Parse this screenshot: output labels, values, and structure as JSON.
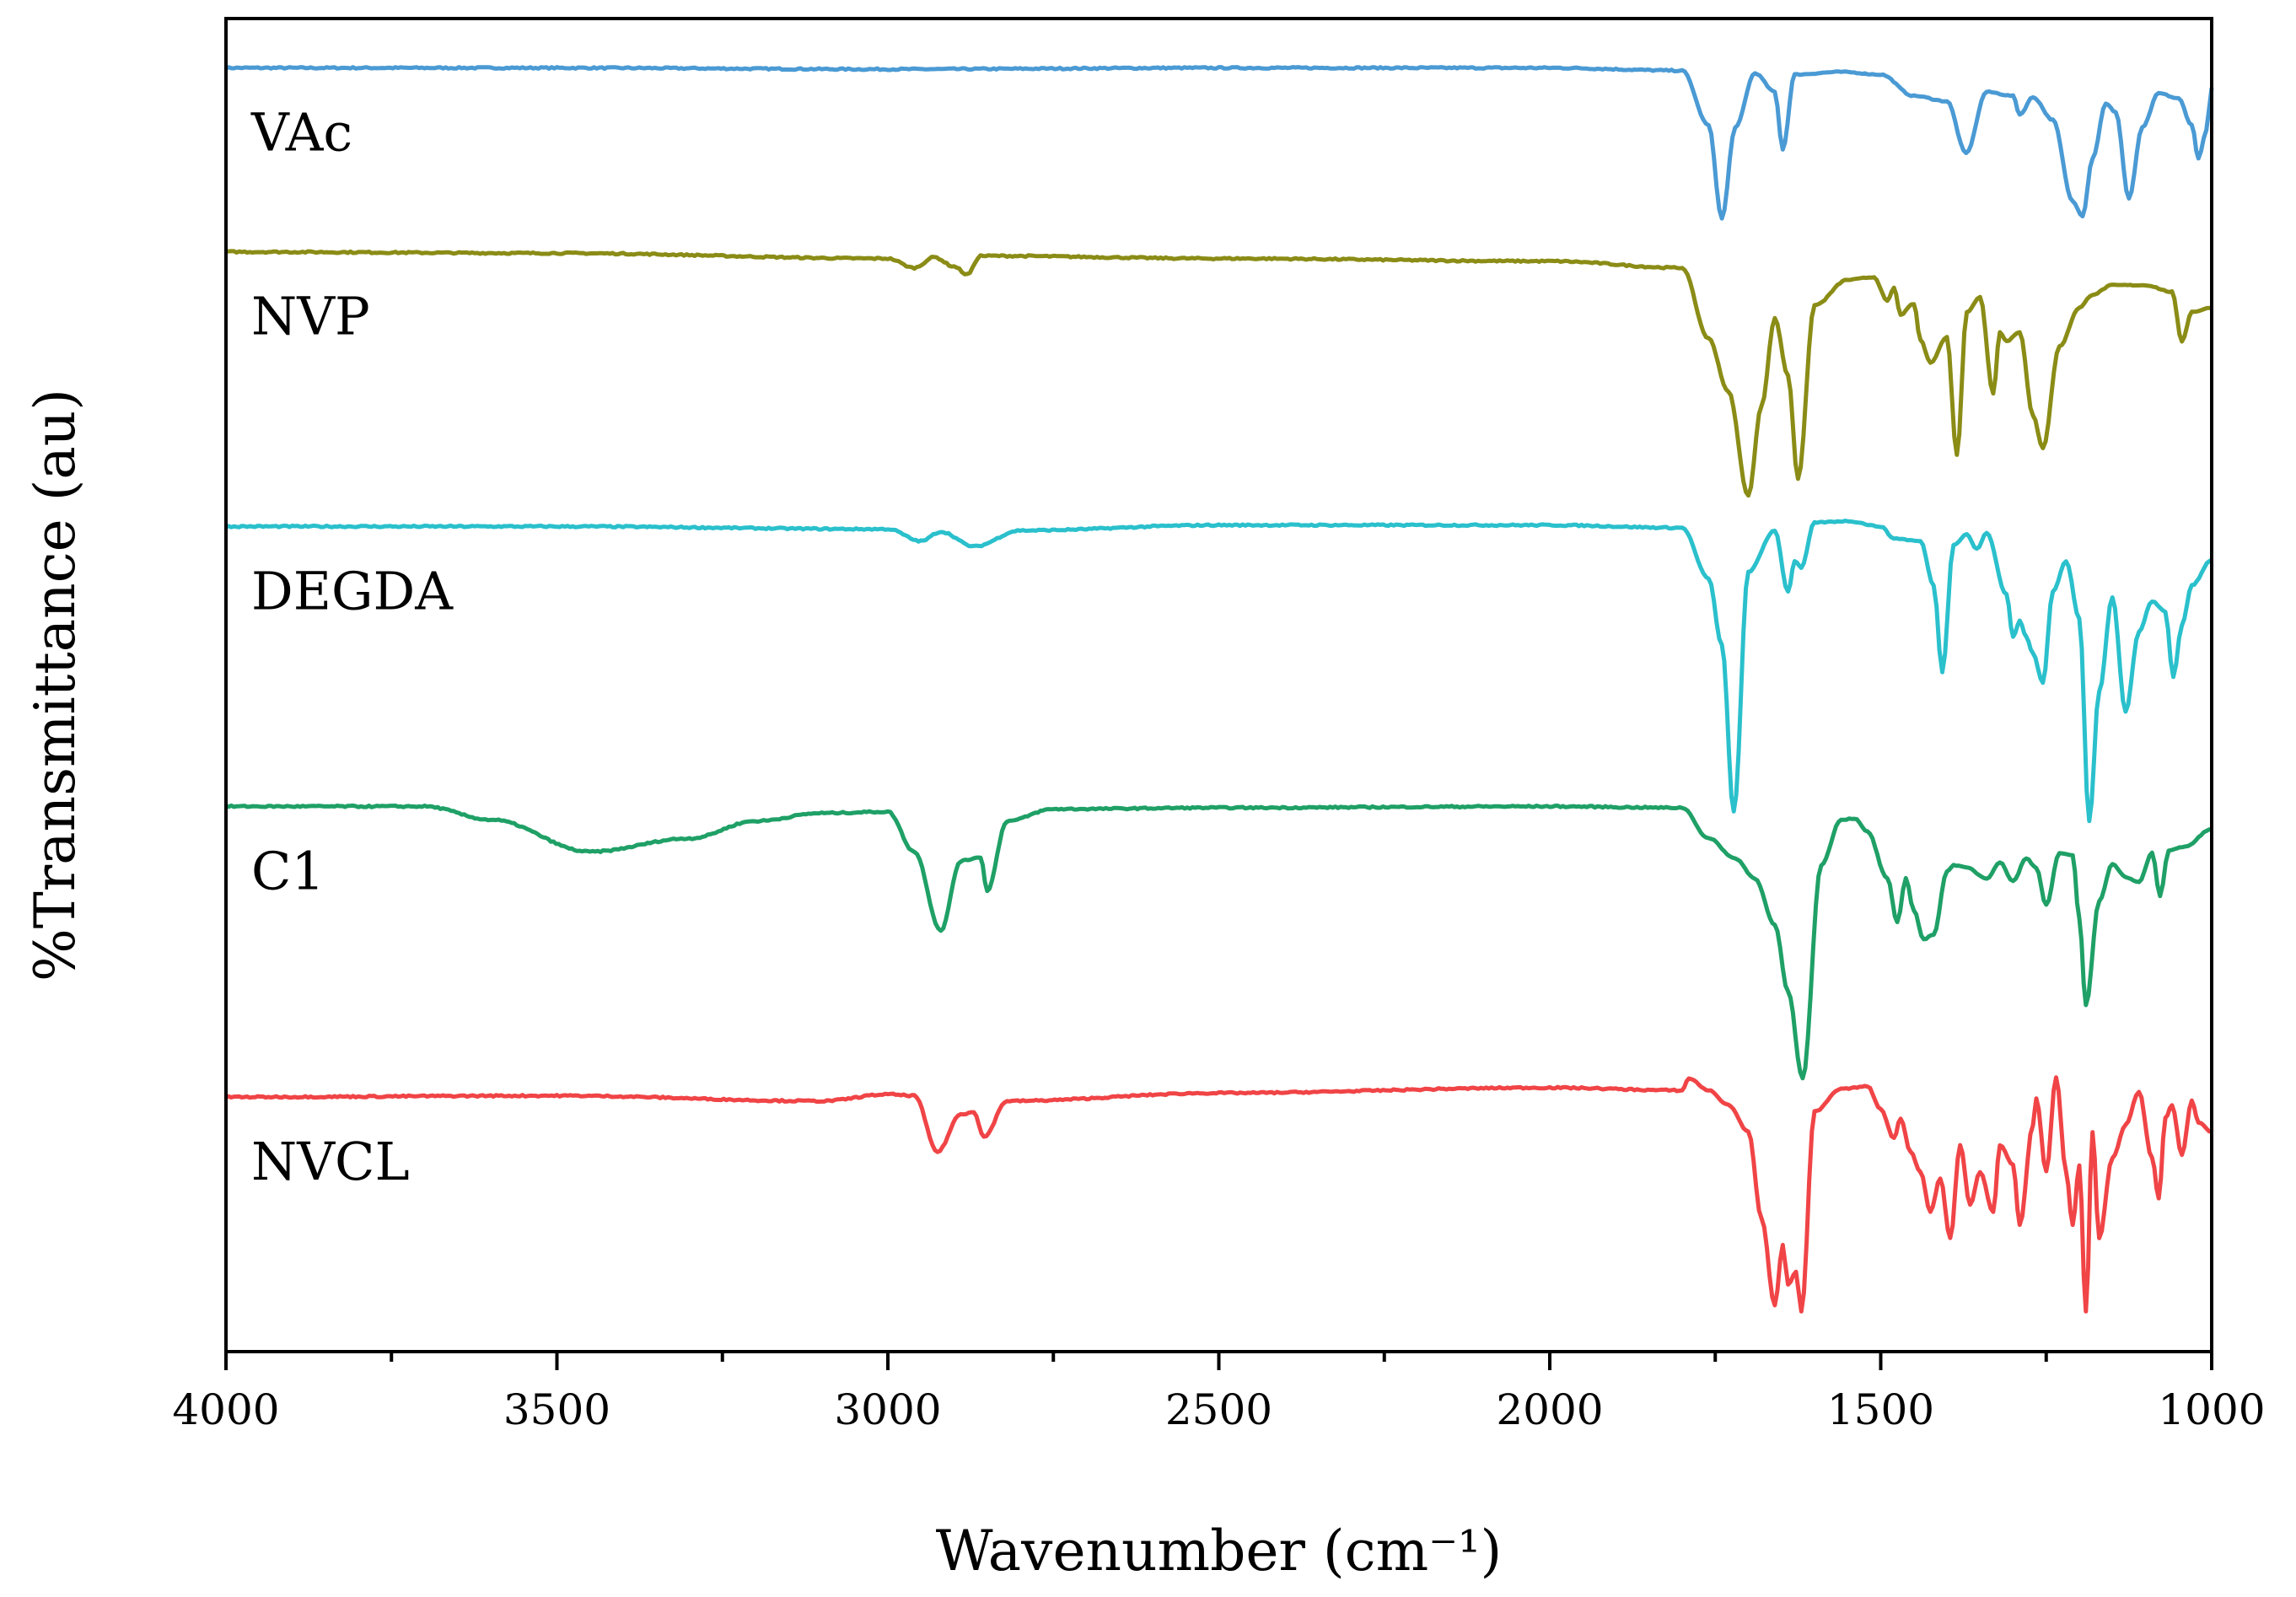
{
  "chart_data": {
    "type": "line",
    "xlabel": "Wavenumber (cm⁻¹)",
    "ylabel": "%Transmittance (au)",
    "xlim": [
      4000,
      1000
    ],
    "x_reversed": true,
    "x_ticks": [
      4000,
      3500,
      3000,
      2500,
      2000,
      1500,
      1000
    ],
    "x_tick_labels": [
      "4000",
      "3500",
      "3000",
      "2500",
      "2000",
      "1500",
      "1000"
    ],
    "ylim": [
      0,
      100
    ],
    "y_ticks_shown": false,
    "grid": false,
    "legend": "none (series labelled inline at left)",
    "series": [
      {
        "name": "VAc",
        "color": "#4a9ad4",
        "baseline": 96.3,
        "x": [
          4000,
          3500,
          3000,
          2500,
          2000,
          1800,
          1760,
          1740,
          1720,
          1690,
          1660,
          1648,
          1630,
          1560,
          1500,
          1450,
          1400,
          1371,
          1340,
          1300,
          1290,
          1270,
          1240,
          1210,
          1195,
          1180,
          1160,
          1145,
          1125,
          1105,
          1080,
          1050,
          1030,
          1020,
          1008,
          1000
        ],
        "y": [
          96.3,
          96.3,
          96.2,
          96.3,
          96.3,
          96.1,
          92.0,
          85.0,
          91.8,
          95.9,
          94.5,
          90.2,
          95.8,
          96.0,
          95.8,
          94.2,
          93.8,
          89.9,
          94.5,
          94.2,
          92.8,
          94.1,
          92.4,
          86.3,
          85.2,
          89.5,
          93.6,
          93.0,
          86.5,
          91.8,
          94.4,
          94.0,
          92.0,
          89.5,
          91.6,
          94.8
        ]
      },
      {
        "name": "NVP",
        "color": "#8a8c16",
        "baseline": 82.5,
        "x": [
          4000,
          3500,
          3000,
          2960,
          2930,
          2900,
          2880,
          2860,
          2500,
          2000,
          1800,
          1760,
          1730,
          1700,
          1680,
          1660,
          1640,
          1625,
          1600,
          1550,
          1510,
          1490,
          1480,
          1470,
          1450,
          1440,
          1425,
          1400,
          1385,
          1370,
          1350,
          1330,
          1320,
          1310,
          1290,
          1270,
          1255,
          1230,
          1200,
          1180,
          1150,
          1100,
          1060,
          1045,
          1030,
          1000
        ],
        "y": [
          82.5,
          82.4,
          82.0,
          81.3,
          82.1,
          81.4,
          80.8,
          82.2,
          82.0,
          81.8,
          81.3,
          76.0,
          72.0,
          64.2,
          71.0,
          77.5,
          73.2,
          65.5,
          78.5,
          80.4,
          80.6,
          78.8,
          79.8,
          77.8,
          78.6,
          75.9,
          74.2,
          76.1,
          67.3,
          78.0,
          79.1,
          71.9,
          76.5,
          75.8,
          76.5,
          70.2,
          67.8,
          75.4,
          78.3,
          79.3,
          80.0,
          80.0,
          79.5,
          75.8,
          78.0,
          78.3
        ]
      },
      {
        "name": "DEGDA",
        "color": "#2ac0cc",
        "baseline": 61.9,
        "x": [
          4000,
          3500,
          3000,
          2950,
          2920,
          2870,
          2800,
          2500,
          2000,
          1800,
          1760,
          1740,
          1722,
          1700,
          1660,
          1640,
          1630,
          1620,
          1600,
          1550,
          1500,
          1480,
          1440,
          1420,
          1407,
          1390,
          1370,
          1355,
          1340,
          1310,
          1300,
          1290,
          1280,
          1270,
          1255,
          1240,
          1220,
          1200,
          1185,
          1170,
          1150,
          1130,
          1110,
          1090,
          1070,
          1058,
          1045,
          1030,
          1000
        ],
        "y": [
          61.9,
          61.9,
          61.7,
          60.8,
          61.5,
          60.4,
          61.6,
          62.0,
          62.0,
          61.8,
          58.0,
          53.0,
          40.5,
          58.5,
          61.6,
          57.0,
          59.3,
          58.8,
          62.2,
          62.3,
          61.9,
          61.0,
          60.8,
          57.5,
          51.0,
          60.5,
          61.3,
          60.2,
          61.4,
          56.8,
          53.6,
          54.8,
          53.6,
          52.4,
          50.2,
          57.0,
          59.3,
          55.0,
          39.8,
          49.5,
          56.6,
          48.0,
          54.0,
          56.3,
          55.5,
          50.6,
          54.5,
          57.5,
          59.4
        ]
      },
      {
        "name": "C1",
        "color": "#1fa066",
        "baseline": 40.9,
        "x": [
          4000,
          3700,
          3600,
          3450,
          3300,
          3200,
          3100,
          3000,
          2960,
          2920,
          2890,
          2860,
          2850,
          2820,
          2750,
          2500,
          2000,
          1800,
          1760,
          1720,
          1690,
          1660,
          1640,
          1618,
          1590,
          1560,
          1540,
          1520,
          1490,
          1475,
          1462,
          1450,
          1435,
          1420,
          1400,
          1390,
          1370,
          1340,
          1320,
          1300,
          1280,
          1265,
          1250,
          1230,
          1210,
          1200,
          1190,
          1170,
          1150,
          1130,
          1110,
          1090,
          1078,
          1065,
          1040,
          1000
        ],
        "y": [
          40.9,
          40.9,
          39.9,
          37.5,
          38.5,
          39.8,
          40.4,
          40.5,
          37.5,
          31.6,
          36.8,
          37.1,
          34.6,
          39.8,
          40.7,
          40.8,
          40.9,
          40.8,
          38.5,
          37.0,
          35.5,
          32.0,
          27.0,
          20.5,
          36.5,
          39.9,
          40.0,
          39.0,
          35.5,
          32.2,
          35.5,
          33.1,
          30.9,
          31.3,
          36.0,
          36.5,
          36.3,
          35.5,
          36.7,
          35.3,
          37.0,
          36.3,
          33.5,
          37.4,
          37.2,
          32.5,
          26.0,
          33.8,
          36.6,
          35.6,
          35.2,
          37.4,
          34.2,
          37.6,
          37.9,
          39.2
        ]
      },
      {
        "name": "NVCL",
        "color": "#f04446",
        "baseline": 19.1,
        "x": [
          4000,
          3500,
          3100,
          3000,
          2960,
          2925,
          2890,
          2870,
          2855,
          2820,
          2500,
          2000,
          1800,
          1790,
          1760,
          1730,
          1700,
          1680,
          1660,
          1648,
          1640,
          1628,
          1620,
          1600,
          1560,
          1520,
          1500,
          1480,
          1470,
          1455,
          1440,
          1425,
          1410,
          1395,
          1380,
          1365,
          1350,
          1330,
          1320,
          1300,
          1290,
          1270,
          1265,
          1250,
          1235,
          1220,
          1210,
          1200,
          1190,
          1180,
          1170,
          1150,
          1130,
          1110,
          1090,
          1080,
          1070,
          1060,
          1045,
          1030,
          1020,
          1000
        ],
        "y": [
          19.1,
          19.2,
          18.8,
          19.3,
          19.2,
          15.0,
          17.8,
          18.0,
          16.1,
          18.8,
          19.4,
          19.8,
          19.6,
          20.5,
          19.6,
          18.5,
          16.5,
          10.0,
          3.5,
          8.0,
          5.0,
          6.0,
          3.0,
          18.0,
          19.7,
          19.9,
          18.2,
          16.0,
          17.5,
          15.0,
          13.5,
          10.5,
          13.0,
          8.5,
          15.5,
          11.0,
          13.5,
          10.5,
          15.5,
          14.0,
          9.5,
          17.0,
          19.0,
          13.5,
          20.6,
          13.5,
          9.5,
          14.0,
          3.0,
          16.5,
          8.5,
          14.5,
          17.0,
          19.5,
          14.5,
          11.5,
          17.5,
          18.5,
          14.8,
          18.8,
          17.2,
          16.5
        ]
      }
    ]
  }
}
